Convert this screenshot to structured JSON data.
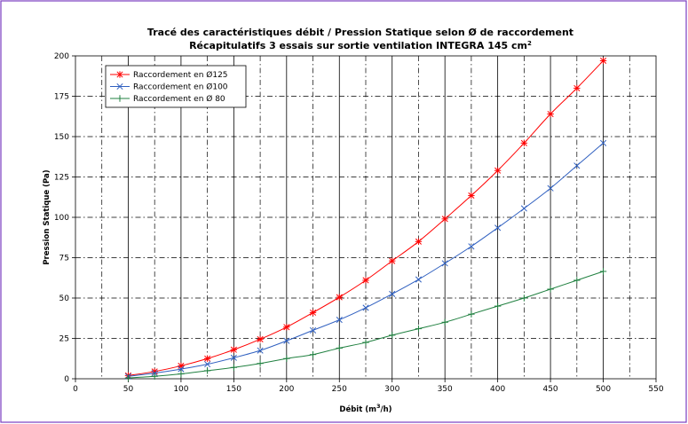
{
  "chart_data": {
    "type": "line",
    "title": "Tracé des caractéristiques débit / Pression Statique selon Ø de raccordement",
    "subtitle": "Récapitulatifs 3 essais sur sortie ventilation INTEGRA 145 cm",
    "subtitle_superscript": "2",
    "xlabel": "Débit (m",
    "xlabel_superscript": "3",
    "xlabel_tail": "/h)",
    "ylabel": "Pression Statique (Pa)",
    "xlim": [
      0,
      550
    ],
    "ylim": [
      0,
      200
    ],
    "x_ticks": [
      0,
      50,
      100,
      150,
      200,
      250,
      300,
      350,
      400,
      450,
      500,
      550
    ],
    "y_ticks": [
      0,
      25,
      50,
      75,
      100,
      125,
      150,
      175,
      200
    ],
    "grid": true,
    "legend_position": "top-left",
    "series": [
      {
        "name": "Raccordement en Ø125",
        "color": "#ff0000",
        "marker": "asterisk",
        "x": [
          50,
          75,
          100,
          125,
          150,
          175,
          200,
          225,
          250,
          275,
          300,
          325,
          350,
          375,
          400,
          425,
          450,
          475,
          500
        ],
        "values": [
          2,
          4.5,
          8,
          12.5,
          18,
          24.5,
          32,
          41,
          50.5,
          61,
          73,
          85,
          99,
          113.5,
          129,
          146,
          164,
          180,
          197
        ]
      },
      {
        "name": "Raccordement en Ø100",
        "color": "#3060c0",
        "marker": "x",
        "x": [
          50,
          75,
          100,
          125,
          150,
          175,
          200,
          225,
          250,
          275,
          300,
          325,
          350,
          375,
          400,
          425,
          450,
          475,
          500
        ],
        "values": [
          1.5,
          3.5,
          6,
          9,
          13,
          17.5,
          23.5,
          30,
          36.5,
          44,
          52.5,
          61.5,
          71.5,
          82,
          93.5,
          105.5,
          118,
          132,
          146
        ]
      },
      {
        "name": "Raccordement en Ø 80",
        "color": "#208040",
        "marker": "plus",
        "x": [
          50,
          75,
          100,
          125,
          150,
          175,
          200,
          225,
          250,
          275,
          300,
          325,
          350,
          375,
          400,
          425,
          450,
          475,
          500
        ],
        "values": [
          0.5,
          1.5,
          3,
          5,
          7,
          9.5,
          12.5,
          15,
          19,
          22.5,
          27,
          31,
          35,
          40,
          45,
          50,
          55.5,
          61,
          66.5
        ]
      }
    ]
  }
}
